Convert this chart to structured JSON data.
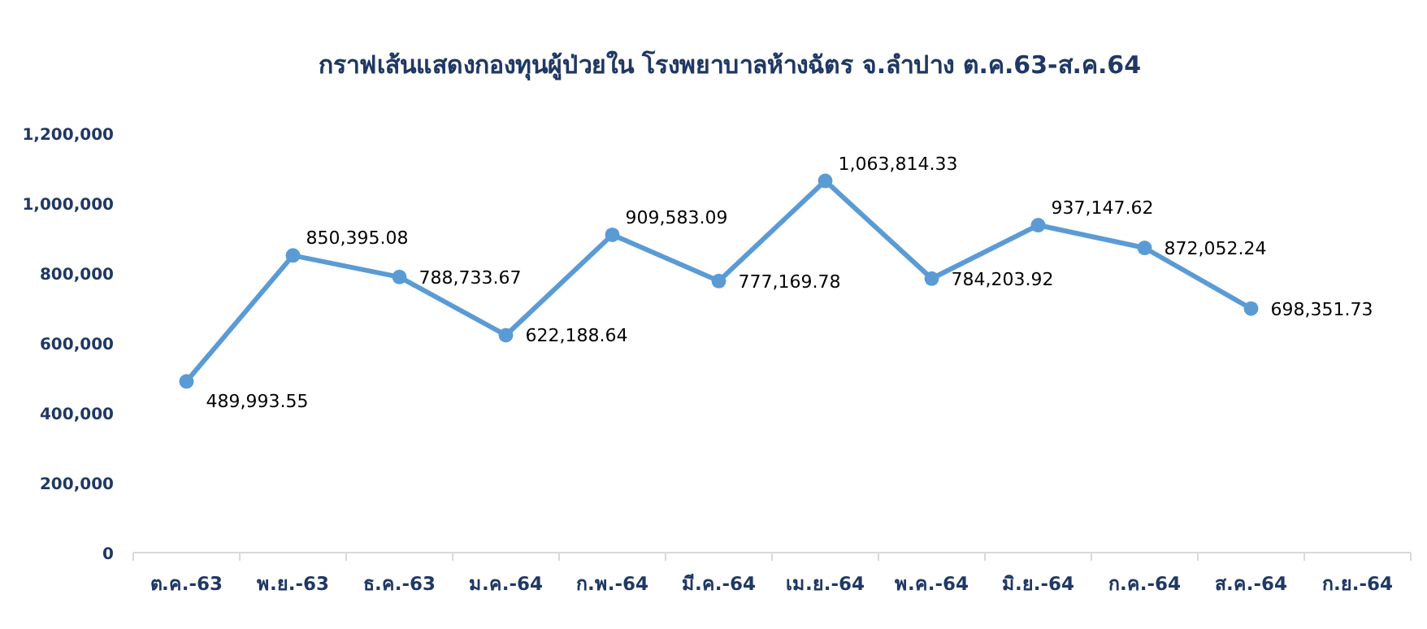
{
  "chart_data": {
    "type": "line",
    "title": "กราฟเส้นแสดงกองทุนผู้ป่วยใน โรงพยาบาลห้างฉัตร จ.ลำปาง ต.ค.63-ส.ค.64",
    "categories": [
      "ต.ค.-63",
      "พ.ย.-63",
      "ธ.ค.-63",
      "ม.ค.-64",
      "ก.พ.-64",
      "มี.ค.-64",
      "เม.ย.-64",
      "พ.ค.-64",
      "มิ.ย.-64",
      "ก.ค.-64",
      "ส.ค.-64",
      "ก.ย.-64"
    ],
    "series": [
      {
        "color": "#5b9bd5",
        "values": [
          489993.55,
          850395.08,
          788733.67,
          622188.64,
          909583.09,
          777169.78,
          1063814.33,
          784203.92,
          937147.62,
          872052.24,
          698351.73,
          null
        ],
        "value_labels": [
          "489,993.55",
          "850,395.08",
          "788,733.67",
          "622,188.64",
          "909,583.09",
          "777,169.78",
          "1,063,814.33",
          "784,203.92",
          "937,147.62",
          "872,052.24",
          "698,351.73",
          null
        ]
      }
    ],
    "ylim": [
      0,
      1200000
    ],
    "yticks": [
      {
        "value": 0,
        "label": "0"
      },
      {
        "value": 200000,
        "label": "200,000"
      },
      {
        "value": 400000,
        "label": "400,000"
      },
      {
        "value": 600000,
        "label": "600,000"
      },
      {
        "value": 800000,
        "label": "800,000"
      },
      {
        "value": 1000000,
        "label": "1,000,000"
      },
      {
        "value": 1200000,
        "label": "1,200,000"
      }
    ],
    "grid": false,
    "marker": "circle",
    "line_style": "solid"
  }
}
